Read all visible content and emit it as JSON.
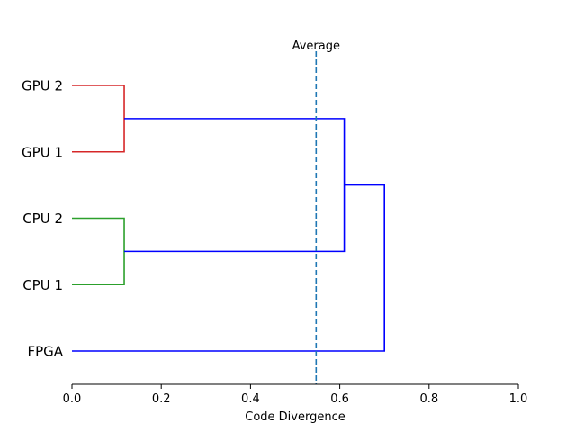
{
  "chart_data": {
    "type": "dendrogram",
    "orientation": "horizontal",
    "xlabel": "Code Divergence",
    "xlim": [
      0.0,
      1.0
    ],
    "xticks": [
      0.0,
      0.2,
      0.4,
      0.6,
      0.8,
      1.0
    ],
    "xtick_labels": [
      "0.0",
      "0.2",
      "0.4",
      "0.6",
      "0.8",
      "1.0"
    ],
    "leaves_top_to_bottom": [
      "GPU 2",
      "GPU 1",
      "CPU 2",
      "CPU 1",
      "FPGA"
    ],
    "merges": [
      {
        "left": "GPU 2",
        "right": "GPU 1",
        "distance": 0.117,
        "color": "#d62728"
      },
      {
        "left": "CPU 2",
        "right": "CPU 1",
        "distance": 0.117,
        "color": "#2ca02c"
      },
      {
        "left": "GPU cluster",
        "right": "CPU cluster",
        "distance": 0.61,
        "color": "#0000ff"
      },
      {
        "left": "GPU/CPU cluster",
        "right": "FPGA",
        "distance": 0.7,
        "color": "#0000ff"
      }
    ],
    "reference_line": {
      "label": "Average",
      "value": 0.547,
      "style": "dashed",
      "color": "#1f77b4"
    },
    "grid": false
  }
}
